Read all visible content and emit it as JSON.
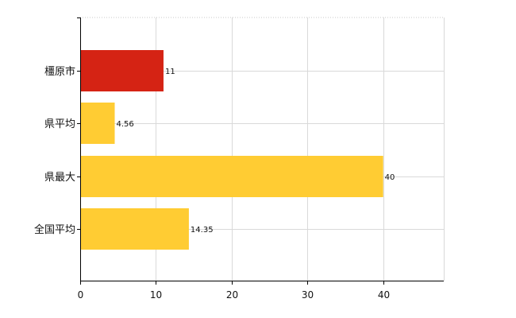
{
  "chart_data": {
    "type": "bar",
    "orientation": "horizontal",
    "categories": [
      "橿原市",
      "県平均",
      "県最大",
      "全国平均"
    ],
    "values": [
      11,
      4.56,
      40,
      14.35
    ],
    "value_labels": [
      "11",
      "4.56",
      "40",
      "14.35"
    ],
    "bar_colors": [
      "#d52314",
      "#ffcc33",
      "#ffcc33",
      "#ffcc33"
    ],
    "xlim": [
      0,
      48
    ],
    "xticks": [
      0,
      10,
      20,
      30,
      40
    ],
    "grid": true,
    "title": "",
    "xlabel": "",
    "ylabel": ""
  }
}
